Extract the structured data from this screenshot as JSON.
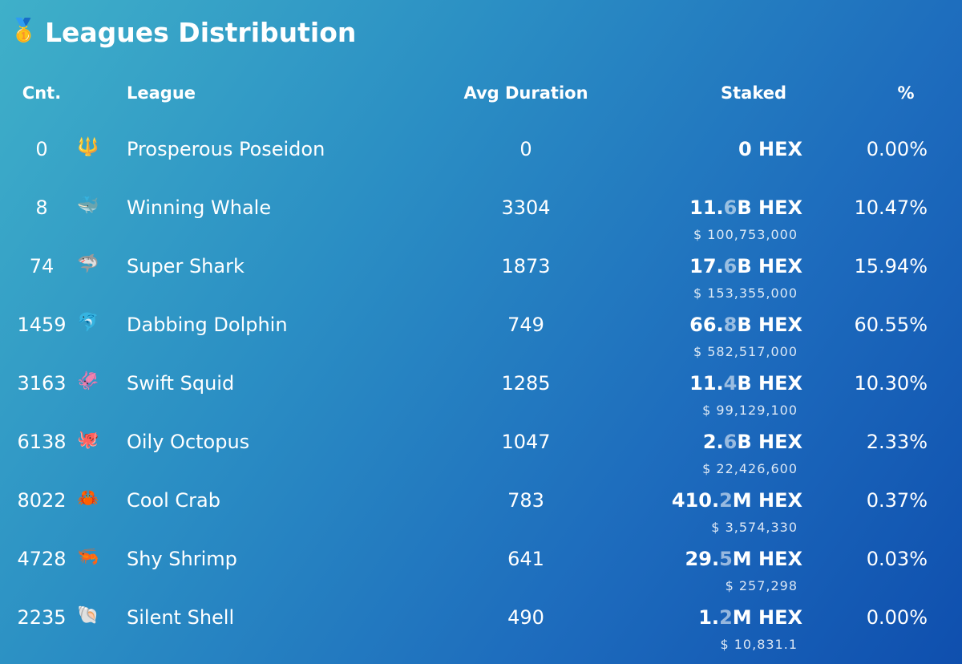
{
  "header": {
    "icon": "🥇",
    "title": "Leagues Distribution"
  },
  "table": {
    "columns": [
      "Cnt.",
      "League",
      "Avg Duration",
      "Staked",
      "%"
    ],
    "rows": [
      {
        "cnt": 0,
        "icon": "🔱",
        "league": "Prosperous Poseidon",
        "avg_duration": 0,
        "staked": "0 HEX",
        "pct": "0.00%"
      },
      {
        "cnt": 8,
        "icon": "🐳",
        "league": "Winning Whale",
        "avg_duration": 3304,
        "staked": "11.6B HEX",
        "usd": "$ 100,753,000",
        "pct": "10.47%"
      },
      {
        "cnt": 74,
        "icon": "🦈",
        "league": "Super Shark",
        "avg_duration": 1873,
        "staked": "17.6B HEX",
        "usd": "$ 153,355,000",
        "pct": "15.94%"
      },
      {
        "cnt": 1459,
        "icon": "🐬",
        "league": "Dabbing Dolphin",
        "avg_duration": 749,
        "staked": "66.8B HEX",
        "usd": "$ 582,517,000",
        "pct": "60.55%"
      },
      {
        "cnt": 3163,
        "icon": "🦑",
        "league": "Swift Squid",
        "avg_duration": 1285,
        "staked": "11.4B HEX",
        "usd": "$ 99,129,100",
        "pct": "10.30%"
      },
      {
        "cnt": 6138,
        "icon": "🐙",
        "league": "Oily Octopus",
        "avg_duration": 1047,
        "staked": "2.6B HEX",
        "usd": "$ 22,426,600",
        "pct": "2.33%"
      },
      {
        "cnt": 8022,
        "icon": "🦀",
        "league": "Cool Crab",
        "avg_duration": 783,
        "staked": "410.2M HEX",
        "usd": "$ 3,574,330",
        "pct": "0.37%"
      },
      {
        "cnt": 4728,
        "icon": "🦐",
        "league": "Shy Shrimp",
        "avg_duration": 641,
        "staked": "29.5M HEX",
        "usd": "$ 257,298",
        "pct": "0.03%"
      },
      {
        "cnt": 2235,
        "icon": "🐚",
        "league": "Silent Shell",
        "avg_duration": 490,
        "staked": "1.2M HEX",
        "usd": "$ 10,831.1",
        "pct": "0.00%"
      }
    ]
  }
}
